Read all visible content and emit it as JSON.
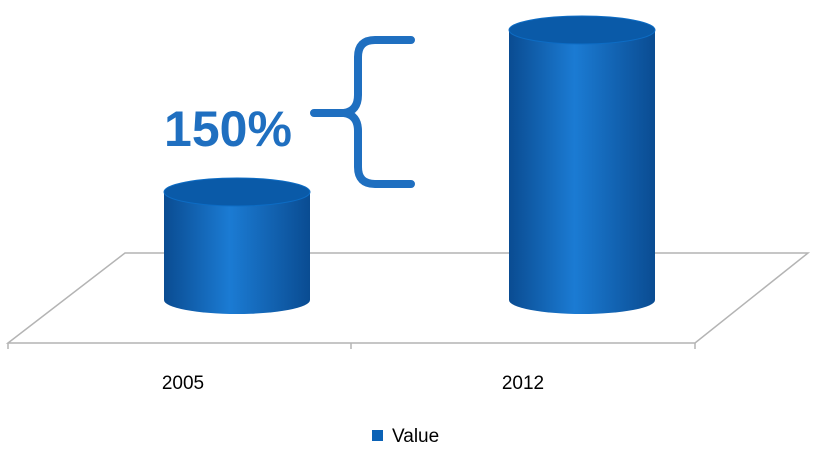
{
  "chart_data": {
    "type": "bar",
    "style": "3d-cylinder",
    "categories": [
      "2005",
      "2012"
    ],
    "series": [
      {
        "name": "Value",
        "values": [
          40,
          100
        ]
      }
    ],
    "ylim": [
      0,
      100
    ],
    "grid": false,
    "legend": "bottom",
    "annotation": {
      "text": "150%",
      "type": "brace"
    }
  },
  "colors": {
    "bar": "#0b62b6",
    "bar_dark": "#0a4f96",
    "bar_light": "#2a86dc",
    "top": "#0a5aa8",
    "annotation": "#1f6fc0",
    "floor_line": "#b4b4b4",
    "text": "#000000"
  }
}
